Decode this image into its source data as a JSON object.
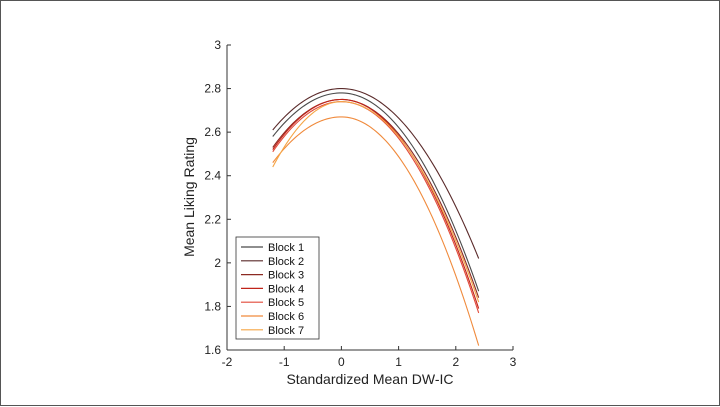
{
  "chart_data": {
    "type": "line",
    "title": "",
    "xlabel": "Standardized Mean DW-IC",
    "ylabel": "Mean Liking Rating",
    "xlim": [
      -2,
      3
    ],
    "ylim": [
      1.6,
      3.0
    ],
    "xticks": [
      -2,
      -1,
      0,
      1,
      2,
      3
    ],
    "yticks": [
      1.6,
      1.8,
      2.0,
      2.2,
      2.4,
      2.6,
      2.8,
      3.0
    ],
    "xtick_labels": [
      "-2",
      "-1",
      "0",
      "1",
      "2",
      "3"
    ],
    "ytick_labels": [
      "1.6",
      "1.8",
      "2",
      "2.2",
      "2.4",
      "2.6",
      "2.8",
      "3"
    ],
    "x_range_of_curves": [
      -1.2,
      2.4
    ],
    "grid": false,
    "legend_position": "bottom-left",
    "series": [
      {
        "name": "Block 1",
        "color": "#4a4a4a",
        "vertex_x": 0.0,
        "vertex_y": 2.78,
        "y_at_x_min": 2.58,
        "y_at_x_max": 1.87
      },
      {
        "name": "Block 2",
        "color": "#5a2a2a",
        "vertex_x": 0.0,
        "vertex_y": 2.8,
        "y_at_x_min": 2.61,
        "y_at_x_max": 2.02
      },
      {
        "name": "Block 3",
        "color": "#8c2a22",
        "vertex_x": 0.0,
        "vertex_y": 2.75,
        "y_at_x_min": 2.53,
        "y_at_x_max": 1.84
      },
      {
        "name": "Block 4",
        "color": "#c0241a",
        "vertex_x": 0.0,
        "vertex_y": 2.75,
        "y_at_x_min": 2.52,
        "y_at_x_max": 1.79
      },
      {
        "name": "Block 5",
        "color": "#e24a3a",
        "vertex_x": 0.0,
        "vertex_y": 2.74,
        "y_at_x_min": 2.51,
        "y_at_x_max": 1.77
      },
      {
        "name": "Block 6",
        "color": "#f08a3c",
        "vertex_x": 0.0,
        "vertex_y": 2.67,
        "y_at_x_min": 2.46,
        "y_at_x_max": 1.62
      },
      {
        "name": "Block 7",
        "color": "#f5a545",
        "vertex_x": 0.0,
        "vertex_y": 2.74,
        "y_at_x_min": 2.44,
        "y_at_x_max": 1.82
      }
    ]
  }
}
